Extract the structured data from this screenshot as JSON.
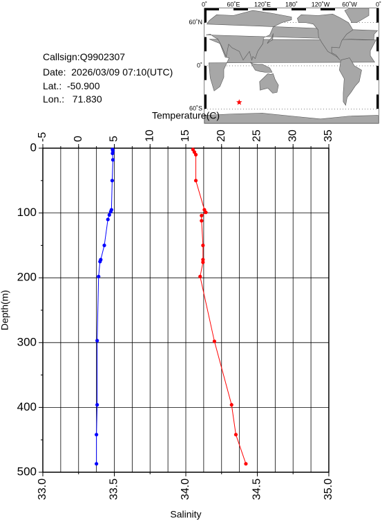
{
  "header": {
    "callsign": "Callsign:Q9902307",
    "date": "Date:  2026/03/09 07:10(UTC)",
    "lat": "Lat.:  -50.900",
    "lon": "Lon.:   71.830"
  },
  "map": {
    "lon_labels": [
      "0˚",
      "60˚E",
      "120˚E",
      "180˚",
      "120˚W",
      "60˚W",
      "0˚"
    ],
    "lat_labels": [
      "60˚N",
      "0˚",
      "60˚S"
    ],
    "marker": {
      "lat": -50.9,
      "lon": 71.83,
      "color": "#ff0000"
    }
  },
  "chart_data": {
    "type": "line",
    "x_top_label": "Temperature(C)",
    "x_bottom_label": "Salinity",
    "y_label": "Depth(m)",
    "temperature_range": [
      -5,
      35
    ],
    "temperature_ticks": [
      "-5",
      "0",
      "5",
      "10",
      "15",
      "20",
      "25",
      "30",
      "35"
    ],
    "salinity_range": [
      33.0,
      35.0
    ],
    "salinity_ticks": [
      "33.0",
      "33.5",
      "34.0",
      "34.5",
      "35.0"
    ],
    "depth_range": [
      0,
      500
    ],
    "depth_ticks": [
      "0",
      "100",
      "200",
      "300",
      "400",
      "500"
    ],
    "grid": true,
    "series": [
      {
        "color": "#0000ff",
        "axis": "temperature",
        "points": [
          [
            4.75,
            2
          ],
          [
            4.8,
            4
          ],
          [
            4.75,
            8
          ],
          [
            4.8,
            18
          ],
          [
            4.7,
            50
          ],
          [
            4.6,
            95
          ],
          [
            4.5,
            98
          ],
          [
            4.3,
            103
          ],
          [
            4.1,
            110
          ],
          [
            3.6,
            150
          ],
          [
            3.1,
            172
          ],
          [
            3.0,
            175
          ],
          [
            2.8,
            198
          ],
          [
            2.6,
            297
          ],
          [
            2.6,
            396
          ],
          [
            2.5,
            442
          ],
          [
            2.5,
            487
          ]
        ]
      },
      {
        "color": "#ff0000",
        "axis": "salinity",
        "points": [
          [
            34.05,
            2
          ],
          [
            34.06,
            6
          ],
          [
            34.07,
            10
          ],
          [
            34.07,
            50
          ],
          [
            34.13,
            95
          ],
          [
            34.14,
            99
          ],
          [
            34.11,
            104
          ],
          [
            34.11,
            112
          ],
          [
            34.12,
            150
          ],
          [
            34.12,
            172
          ],
          [
            34.12,
            176
          ],
          [
            34.1,
            198
          ],
          [
            34.2,
            298
          ],
          [
            34.32,
            396
          ],
          [
            34.35,
            442
          ],
          [
            34.42,
            487
          ]
        ]
      }
    ]
  }
}
